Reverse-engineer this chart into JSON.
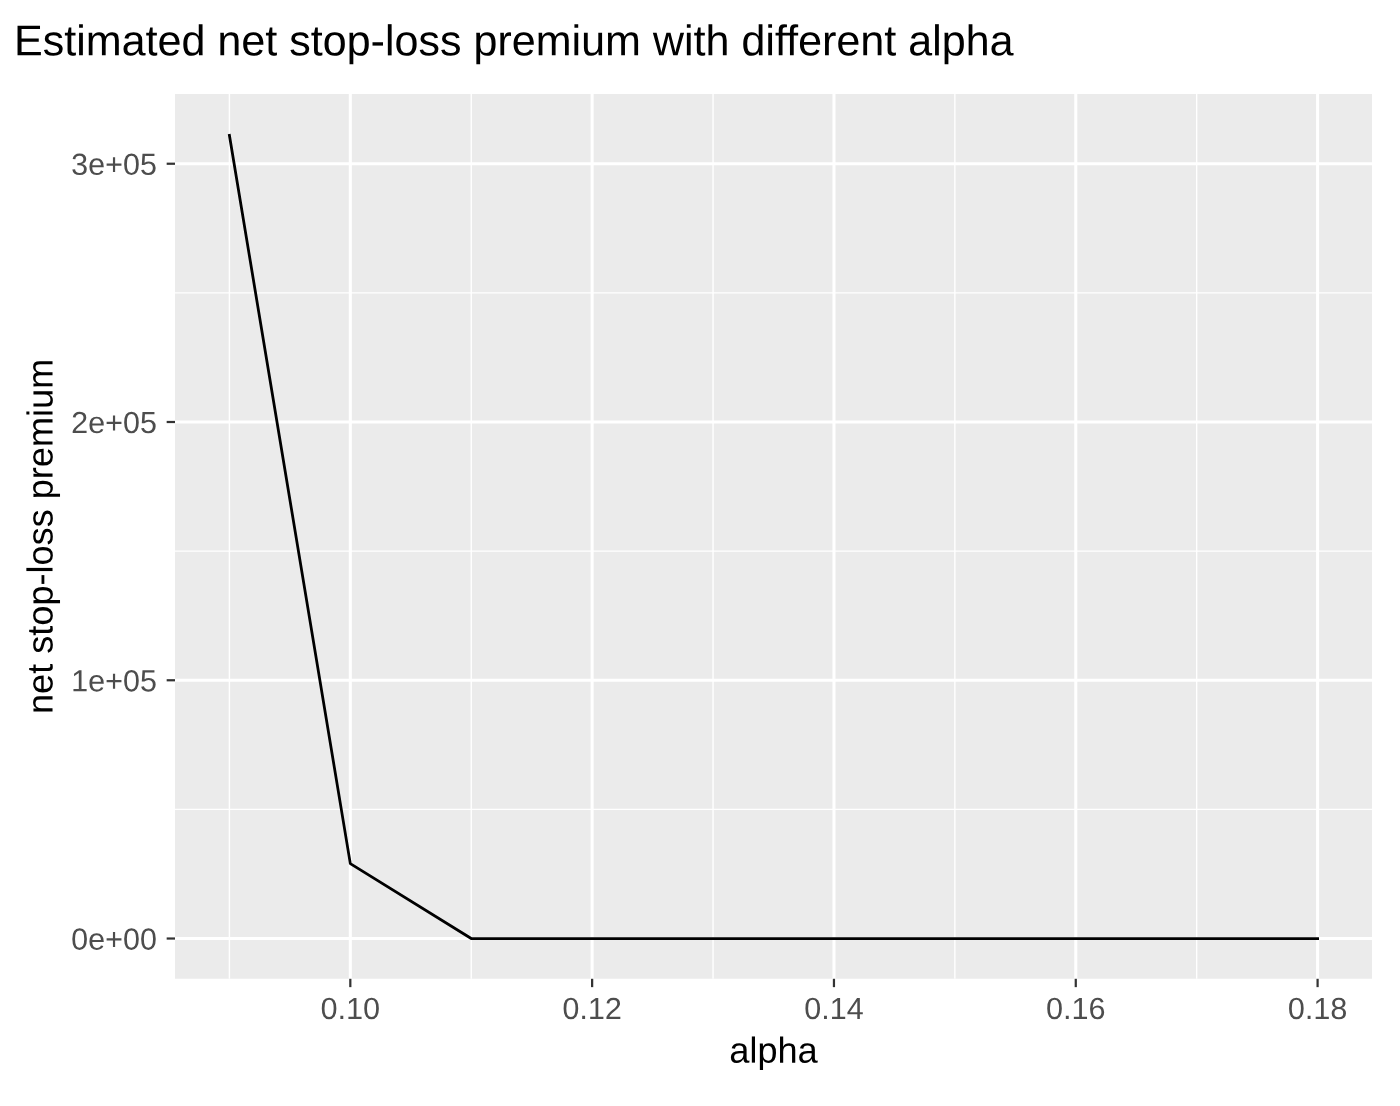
{
  "chart_data": {
    "type": "line",
    "title": "Estimated net stop-loss premium with different alpha",
    "xlabel": "alpha",
    "ylabel": "net stop-loss premium",
    "x": [
      0.09,
      0.1,
      0.11,
      0.12,
      0.13,
      0.14,
      0.15,
      0.16,
      0.17,
      0.18
    ],
    "series": [
      {
        "color": "#000000",
        "values": [
          311000,
          29000,
          0,
          0,
          0,
          0,
          0,
          0,
          0,
          0
        ]
      }
    ],
    "xlim": [
      0.0855,
      0.1845
    ],
    "ylim": [
      -15600,
      327000
    ],
    "xticks": [
      {
        "value": 0.1,
        "label": "0.10"
      },
      {
        "value": 0.12,
        "label": "0.12"
      },
      {
        "value": 0.14,
        "label": "0.14"
      },
      {
        "value": 0.16,
        "label": "0.16"
      },
      {
        "value": 0.18,
        "label": "0.18"
      }
    ],
    "yticks": [
      {
        "value": 0,
        "label": "0e+00"
      },
      {
        "value": 100000,
        "label": "1e+05"
      },
      {
        "value": 200000,
        "label": "2e+05"
      },
      {
        "value": 300000,
        "label": "3e+05"
      }
    ],
    "grid": true,
    "marker": "none",
    "line_style": "solid"
  }
}
